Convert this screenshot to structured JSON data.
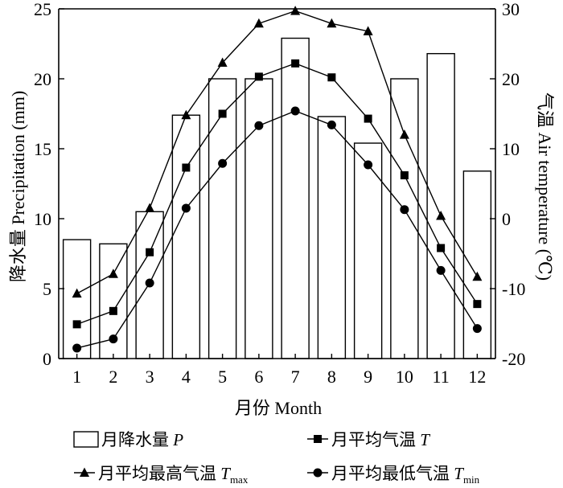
{
  "chart_data": {
    "type": "bar+line",
    "categories": [
      "1",
      "2",
      "3",
      "4",
      "5",
      "6",
      "7",
      "8",
      "9",
      "10",
      "11",
      "12"
    ],
    "xlabel": "月份 Month",
    "y_left": {
      "label": "降水量 Precipitation (mm)",
      "range": [
        0,
        25
      ],
      "ticks": [
        "0",
        "5",
        "10",
        "15",
        "20",
        "25"
      ]
    },
    "y_right": {
      "label": "气温 Air temperature (℃)",
      "range": [
        -20,
        30
      ],
      "ticks": [
        "-20",
        "-10",
        "0",
        "10",
        "20",
        "30"
      ]
    },
    "series": [
      {
        "name": "月降水量",
        "var": "P",
        "sub": "",
        "type": "bar",
        "axis": "left",
        "values": [
          8.5,
          8.2,
          10.5,
          17.4,
          20.0,
          20.0,
          22.9,
          17.3,
          15.4,
          20.0,
          21.8,
          13.4
        ]
      },
      {
        "name": "月平均最高气温",
        "var": "T",
        "sub": "max",
        "type": "line",
        "marker": "triangle",
        "axis": "right",
        "values": [
          -10.7,
          -7.9,
          1.5,
          14.8,
          22.3,
          27.9,
          29.7,
          27.9,
          26.8,
          12.0,
          0.4,
          -8.3
        ]
      },
      {
        "name": "月平均气温",
        "var": "T",
        "sub": "",
        "type": "line",
        "marker": "square",
        "axis": "right",
        "values": [
          -15.1,
          -13.2,
          -4.8,
          7.3,
          15.0,
          20.3,
          22.2,
          20.2,
          14.3,
          6.2,
          -4.2,
          -12.2
        ]
      },
      {
        "name": "月平均最低气温",
        "var": "T",
        "sub": "min",
        "type": "line",
        "marker": "circle",
        "axis": "right",
        "values": [
          -18.5,
          -17.2,
          -9.2,
          1.5,
          7.9,
          13.3,
          15.4,
          13.4,
          7.7,
          1.3,
          -7.4,
          -15.7
        ]
      }
    ],
    "legend": [
      {
        "symbol": "bar",
        "label": "月降水量",
        "var": "P",
        "sub": ""
      },
      {
        "symbol": "square",
        "label": "月平均气温",
        "var": "T",
        "sub": ""
      },
      {
        "symbol": "triangle",
        "label": "月平均最高气温",
        "var": "T",
        "sub": "max"
      },
      {
        "symbol": "circle",
        "label": "月平均最低气温",
        "var": "T",
        "sub": "min"
      }
    ],
    "legend_position": "bottom",
    "grid": false
  }
}
